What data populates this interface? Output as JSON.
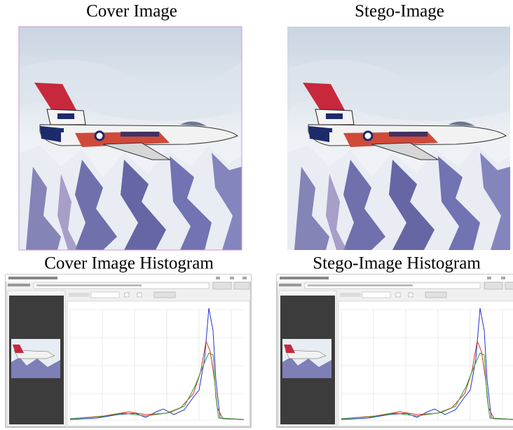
{
  "panels": {
    "cover_image": {
      "title": "Cover Image"
    },
    "stego_image": {
      "title": "Stego-Image"
    },
    "cover_histogram": {
      "title": "Cover Image Histogram"
    },
    "stego_histogram": {
      "title": "Stego-Image Histogram"
    }
  }
}
